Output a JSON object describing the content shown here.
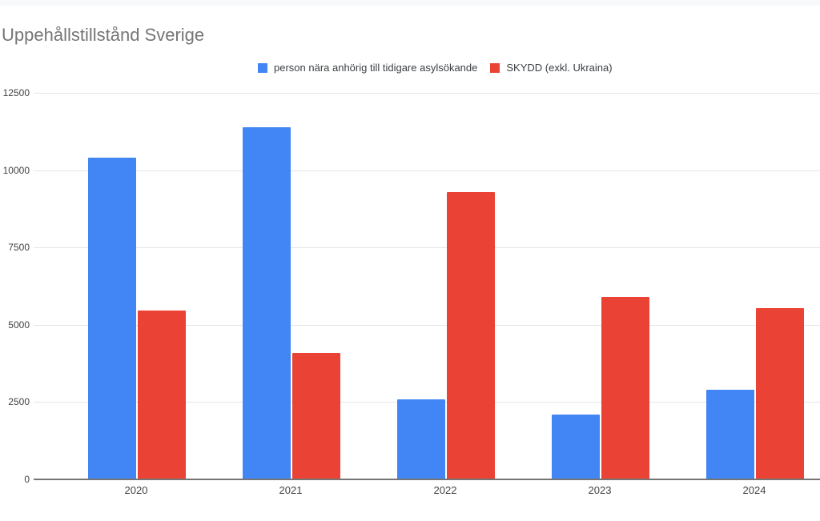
{
  "page": {
    "title": "Uppehållstillstånd Sverige"
  },
  "legend": [
    {
      "label": "person nära anhörig till tidigare asylsökande",
      "color": "#4285F4",
      "swatch_icon": "blue-square-icon"
    },
    {
      "label": "SKYDD (exkl. Ukraina)",
      "color": "#EA4335",
      "swatch_icon": "red-square-icon"
    }
  ],
  "chart_data": {
    "type": "bar",
    "title": "Uppehållstillstånd Sverige",
    "categories": [
      "2020",
      "2021",
      "2022",
      "2023",
      "2024"
    ],
    "series": [
      {
        "name": "person nära anhörig till tidigare asylsökande",
        "color": "#4285F4",
        "values": [
          10400,
          11400,
          2600,
          2100,
          2900
        ]
      },
      {
        "name": "SKYDD (exkl. Ukraina)",
        "color": "#EA4335",
        "values": [
          5450,
          4100,
          9300,
          5900,
          5550
        ]
      }
    ],
    "xlabel": "",
    "ylabel": "",
    "ylim": [
      0,
      12500
    ],
    "y_ticks": [
      0,
      2500,
      5000,
      7500,
      10000,
      12500
    ],
    "y_tick_labels": [
      "0",
      "2500",
      "5000",
      "7500",
      "10000",
      "12500"
    ],
    "grid": true,
    "legend_position": "top",
    "bar_orientation": "vertical"
  },
  "colors": {
    "series_blue": "#4285F4",
    "series_red": "#EA4335",
    "title_text": "#757575",
    "axis_text": "#424242",
    "legend_text": "#3c4043",
    "gridline": "#e6e6e6",
    "axis_baseline": "#757575",
    "top_strip": "#f8f9fb",
    "background": "#ffffff"
  }
}
